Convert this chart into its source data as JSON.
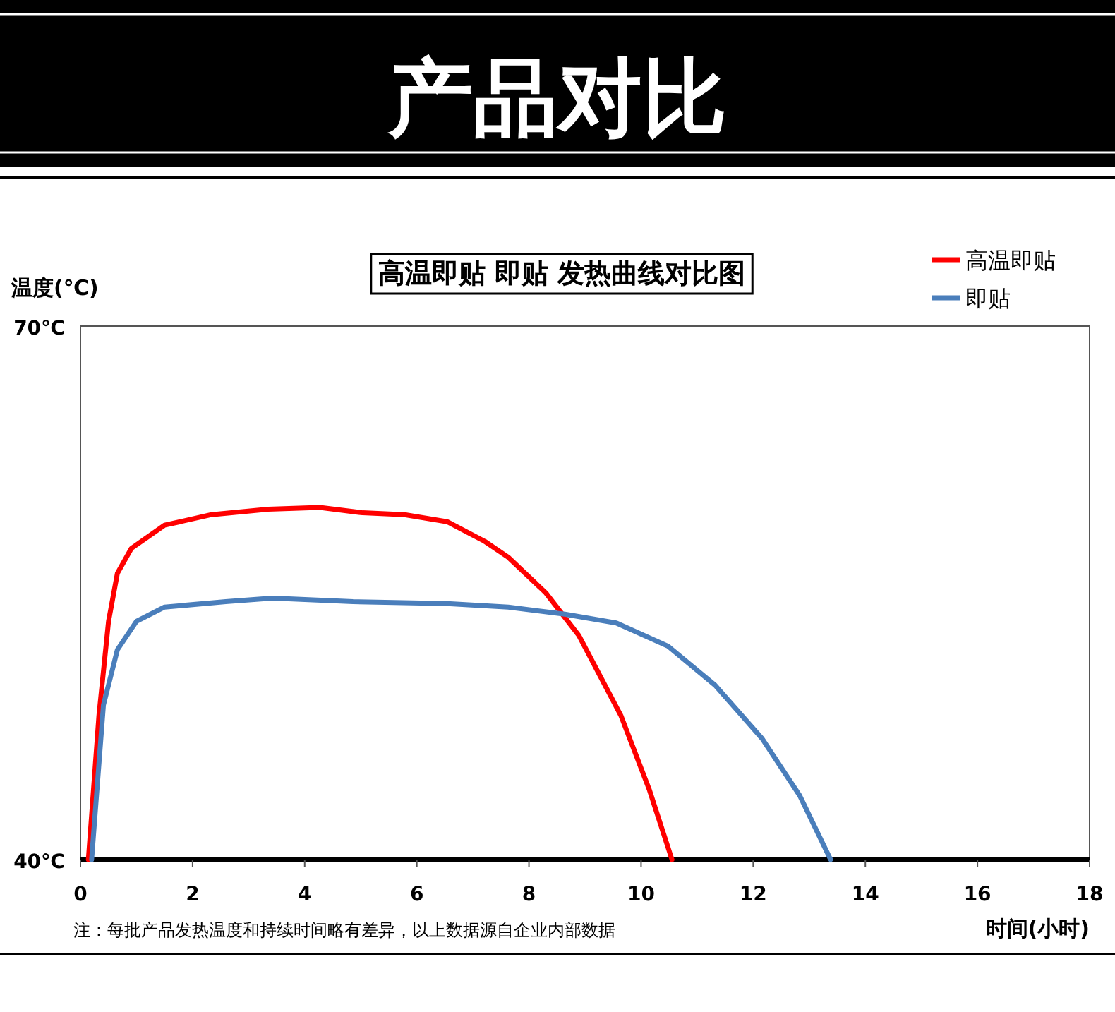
{
  "chart_data": {
    "type": "line",
    "title": "产品对比",
    "subtitle": "高温即贴 即贴 发热曲线对比图",
    "xlabel": "时间(小时)",
    "ylabel": "温度(℃)",
    "annotations": [
      "注：每批产品发热温度和持续时间略有差异，以上数据源自企业内部数据"
    ],
    "xlim": [
      0,
      18
    ],
    "xticks": [
      0,
      2,
      4,
      6,
      8,
      10,
      12,
      14,
      16,
      18
    ],
    "ylim": [
      40,
      70
    ],
    "yticks": [
      {
        "value": 40,
        "label": "40℃"
      },
      {
        "value": 70,
        "label": "70℃"
      }
    ],
    "legend": "top right",
    "series": [
      {
        "name": "高温即贴",
        "color": "#ff0000",
        "x": [
          0.14,
          0.33,
          0.5,
          0.66,
          0.91,
          1.5,
          2.34,
          3.35,
          4.27,
          5.03,
          5.78,
          6.54,
          7.21,
          7.63,
          8.3,
          8.89,
          9.64,
          10.15,
          10.55
        ],
        "values": [
          40,
          48.1,
          53.4,
          56.1,
          57.5,
          58.8,
          59.4,
          59.7,
          59.8,
          59.5,
          59.4,
          59.0,
          57.9,
          57.0,
          55.0,
          52.6,
          48.1,
          43.9,
          40
        ]
      },
      {
        "name": "即贴",
        "color": "#4a7ebb",
        "x": [
          0.2,
          0.41,
          0.66,
          1.0,
          1.5,
          2.59,
          3.43,
          4.86,
          6.54,
          7.63,
          8.64,
          9.56,
          10.48,
          11.32,
          12.16,
          12.83,
          13.38
        ],
        "values": [
          40,
          48.7,
          51.8,
          53.4,
          54.2,
          54.5,
          54.7,
          54.5,
          54.4,
          54.2,
          53.8,
          53.3,
          52.0,
          49.8,
          46.8,
          43.6,
          40
        ]
      }
    ]
  }
}
